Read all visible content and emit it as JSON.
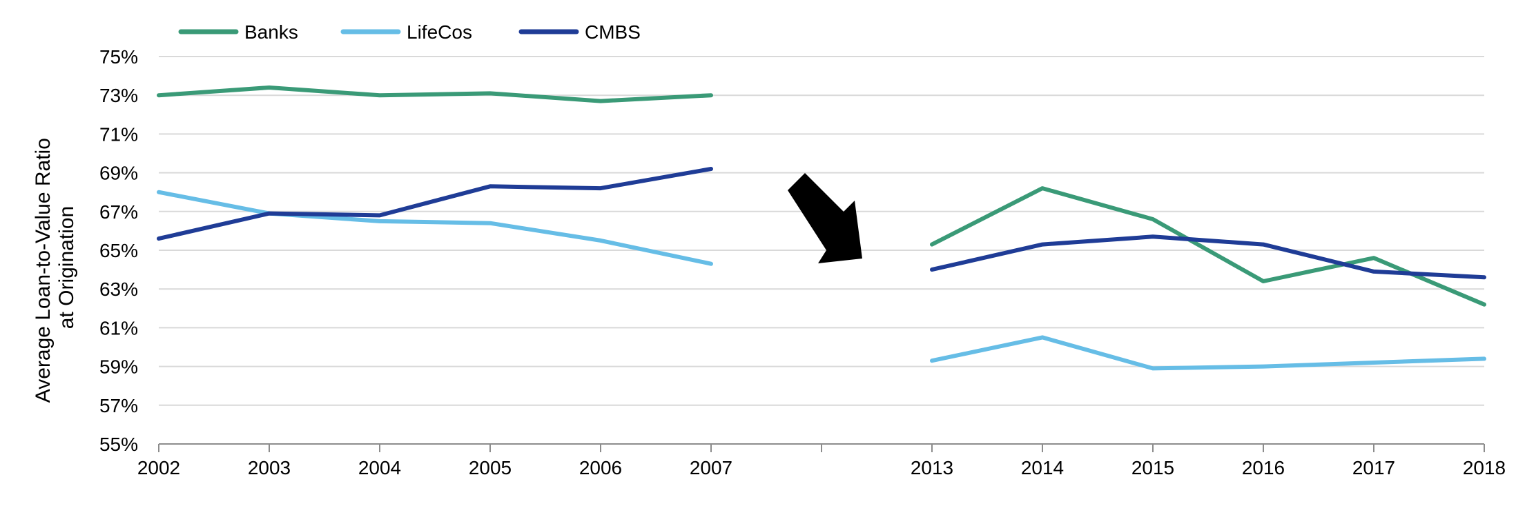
{
  "chart_data": {
    "type": "line",
    "ylabel_lines": [
      "Average Loan-to-Value Ratio",
      "at Origination"
    ],
    "categories": [
      "2002",
      "2003",
      "2004",
      "2005",
      "2006",
      "2007",
      "",
      "2013",
      "2014",
      "2015",
      "2016",
      "2017",
      "2018"
    ],
    "ylim": [
      55,
      75
    ],
    "yticks": [
      55,
      57,
      59,
      61,
      63,
      65,
      67,
      69,
      71,
      73,
      75
    ],
    "ytick_labels": [
      "55%",
      "57%",
      "59%",
      "61%",
      "63%",
      "65%",
      "67%",
      "69%",
      "71%",
      "73%",
      "75%"
    ],
    "grid": "horizontal",
    "legend_position": "top-left",
    "series": [
      {
        "name": "Banks",
        "color": "#3a9a77",
        "values": [
          73.0,
          73.4,
          73.0,
          73.1,
          72.7,
          73.0,
          null,
          65.3,
          68.2,
          66.6,
          63.4,
          64.6,
          62.2
        ]
      },
      {
        "name": "LifeCos",
        "color": "#66bde6",
        "values": [
          68.0,
          66.9,
          66.5,
          66.4,
          65.5,
          64.3,
          null,
          59.3,
          60.5,
          58.9,
          59.0,
          59.2,
          59.4
        ]
      },
      {
        "name": "CMBS",
        "color": "#1f3c96",
        "values": [
          65.6,
          66.9,
          66.8,
          68.3,
          68.2,
          69.2,
          null,
          64.0,
          65.3,
          65.7,
          65.3,
          63.9,
          63.6
        ]
      }
    ],
    "annotation": {
      "type": "arrow",
      "icon": "down-right-arrow-icon",
      "color": "#000000"
    }
  }
}
